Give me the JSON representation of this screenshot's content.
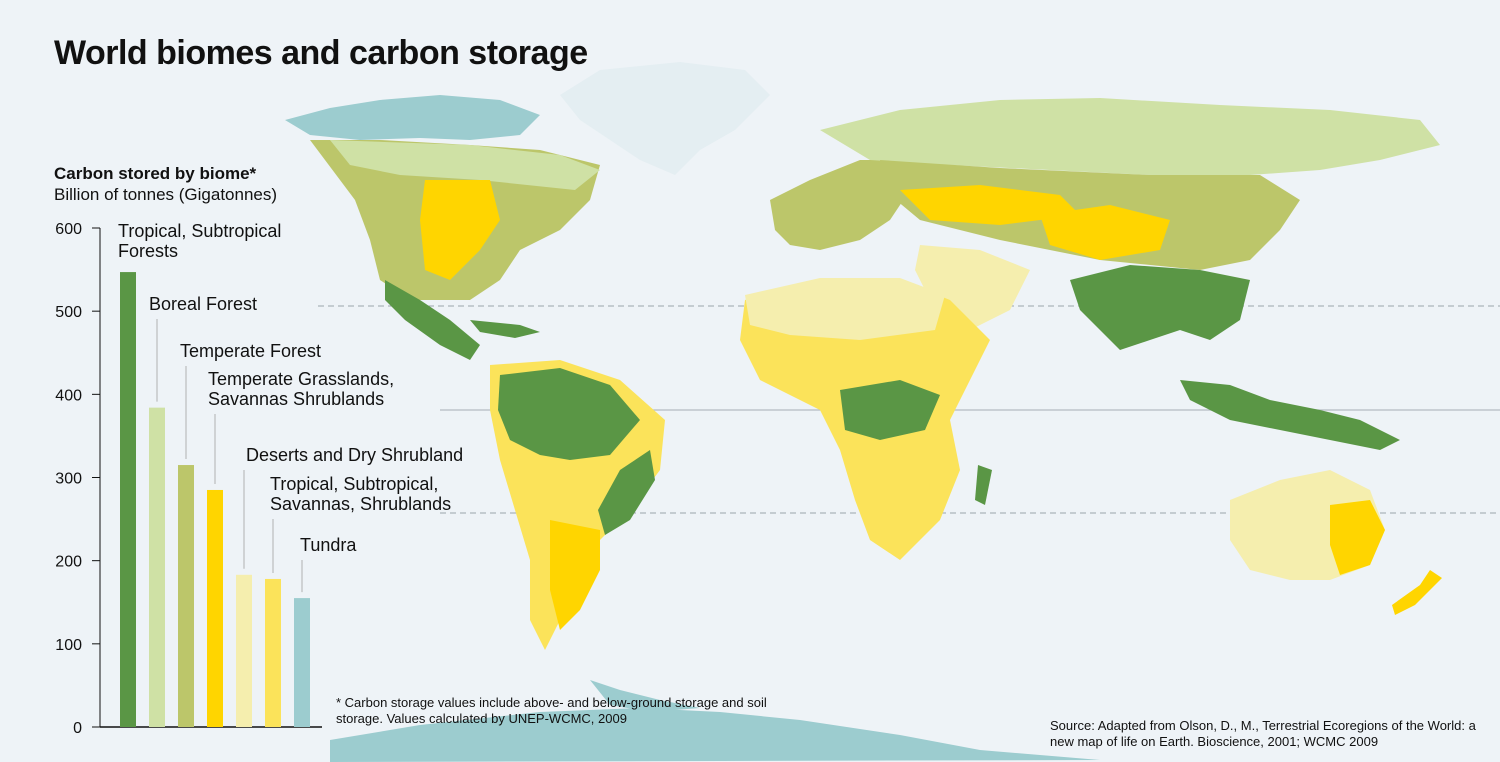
{
  "title": "World biomes and carbon storage",
  "colors": {
    "background": "#eef3f7",
    "ocean": "#eef3f7",
    "ice": "#e4eef2",
    "water_polar": "#9ccccf",
    "tropical_forest": "#5a9645",
    "boreal_forest": "#cfe1a5",
    "temperate_forest": "#bcc66a",
    "temperate_grassland": "#ffd500",
    "desert": "#f5eeae",
    "tropical_savanna": "#fbe35a",
    "tundra": "#9ccccf"
  },
  "chart_data": {
    "type": "bar",
    "title": "Carbon stored by biome*",
    "subtitle": "Billion of tonnes (Gigatonnes)",
    "ylim": [
      0,
      600
    ],
    "yticks": [
      0,
      100,
      200,
      300,
      400,
      500,
      600
    ],
    "categories": [
      "Tropical, Subtropical Forests",
      "Boreal Forest",
      "Temperate Forest",
      "Temperate Grasslands, Savannas Shrublands",
      "Deserts and Dry Shrubland",
      "Tropical, Subtropical, Savannas, Shrublands",
      "Tundra"
    ],
    "label_lines": [
      [
        "Tropical, Subtropical",
        "Forests"
      ],
      [
        "Boreal Forest"
      ],
      [
        "Temperate Forest"
      ],
      [
        "Temperate Grasslands,",
        "Savannas Shrublands"
      ],
      [
        "Deserts and Dry Shrubland"
      ],
      [
        "Tropical, Subtropical,",
        "Savannas, Shrublands"
      ],
      [
        "Tundra"
      ]
    ],
    "values": [
      547,
      384,
      315,
      285,
      183,
      178,
      155
    ],
    "bar_colors": [
      "#5a9645",
      "#cfe1a5",
      "#bcc66a",
      "#ffd500",
      "#f5eeae",
      "#fbe35a",
      "#9ccccf"
    ],
    "grid": false
  },
  "footnote": "* Carbon storage values include above- and below-ground storage and soil storage. Values calculated by UNEP-WCMC, 2009",
  "source": "Source: Adapted from Olson, D., M., Terrestrial Ecoregions of the World: a new map of life on Earth. Bioscience, 2001; WCMC 2009"
}
